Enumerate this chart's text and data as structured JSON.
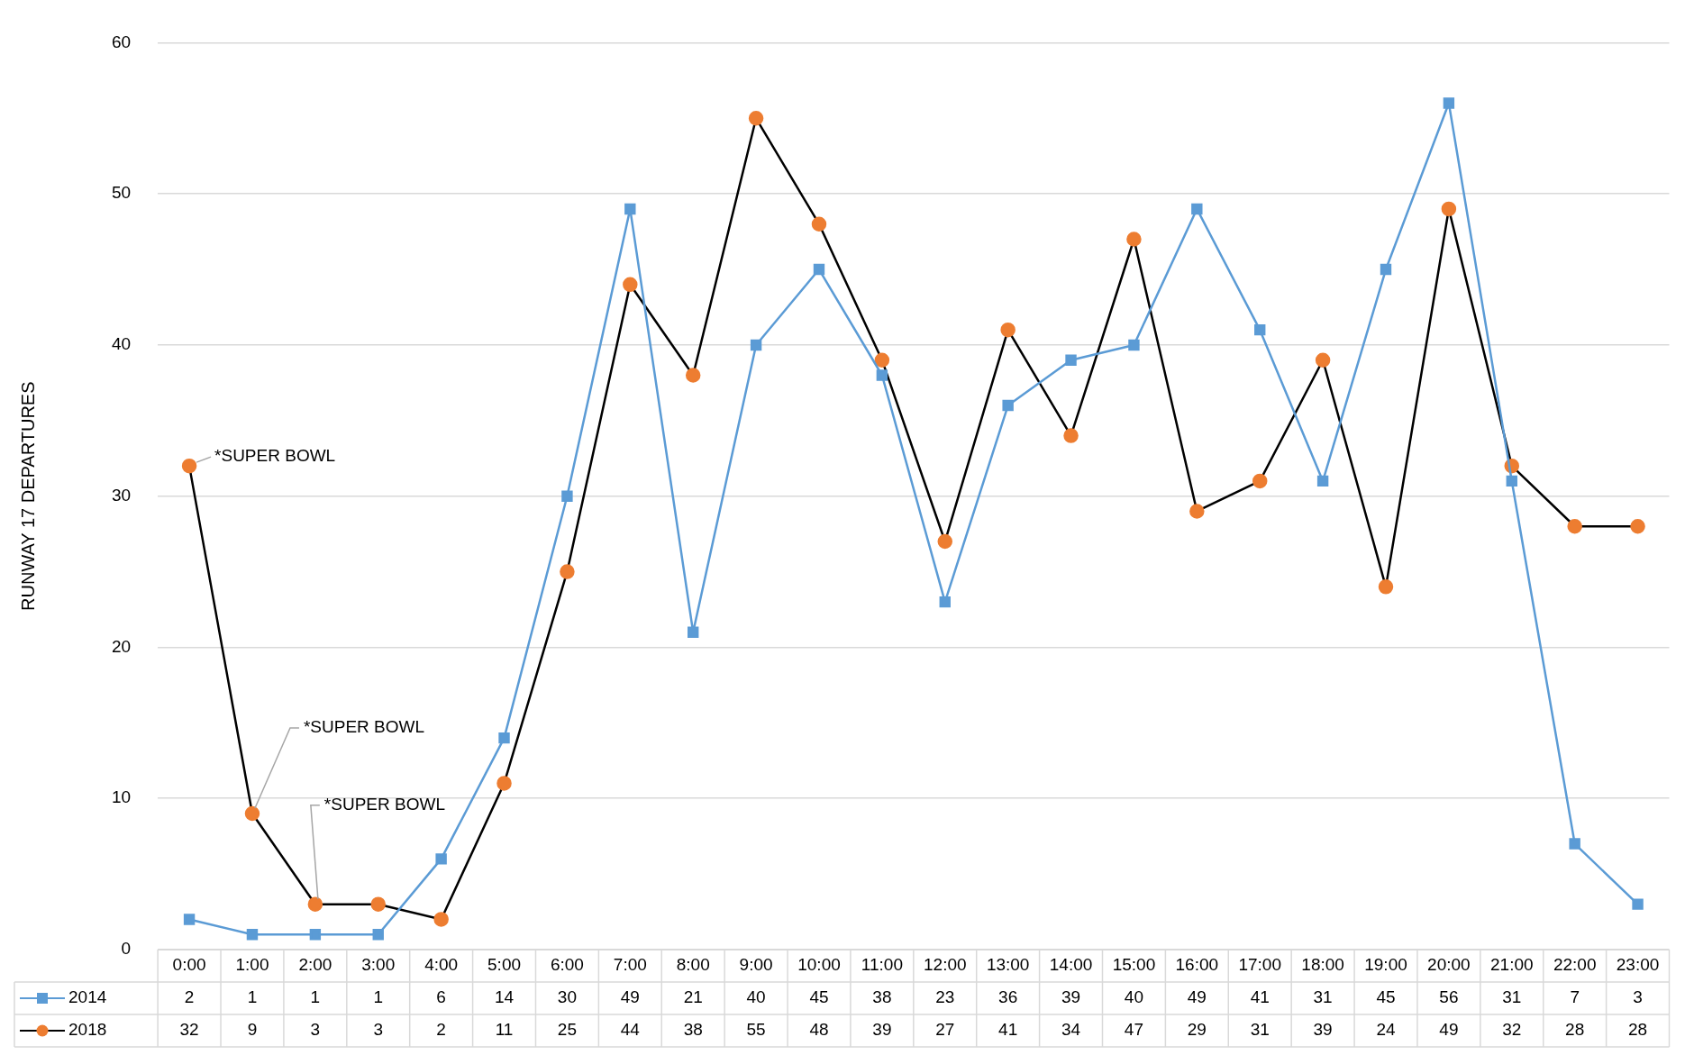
{
  "chart_data": {
    "type": "line",
    "ylabel": "RUNWAY 17 DEPARTURES",
    "categories": [
      "0:00",
      "1:00",
      "2:00",
      "3:00",
      "4:00",
      "5:00",
      "6:00",
      "7:00",
      "8:00",
      "9:00",
      "10:00",
      "11:00",
      "12:00",
      "13:00",
      "14:00",
      "15:00",
      "16:00",
      "17:00",
      "18:00",
      "19:00",
      "20:00",
      "21:00",
      "22:00",
      "23:00"
    ],
    "series": [
      {
        "name": "2014",
        "color": "#5b9bd5",
        "marker": "square",
        "values": [
          2,
          1,
          1,
          1,
          6,
          14,
          30,
          49,
          21,
          40,
          45,
          38,
          23,
          36,
          39,
          40,
          49,
          41,
          31,
          45,
          56,
          31,
          7,
          3
        ]
      },
      {
        "name": "2018",
        "color": "#ed7d31",
        "marker": "circle",
        "values": [
          32,
          9,
          3,
          3,
          2,
          11,
          25,
          44,
          38,
          55,
          48,
          39,
          27,
          41,
          34,
          47,
          29,
          31,
          39,
          24,
          49,
          32,
          28,
          28
        ]
      }
    ],
    "ylim": [
      0,
      60
    ],
    "yticks": [
      0,
      10,
      20,
      30,
      40,
      50,
      60
    ],
    "grid": "y",
    "legend": "bottom",
    "data_labels": true,
    "annotations": [
      {
        "text": "*SUPER BOWL",
        "x": "0:00",
        "y": 32
      },
      {
        "text": "*SUPER BOWL",
        "x": "1:00",
        "y": 9
      },
      {
        "text": "*SUPER BOWL",
        "x": "2:00",
        "y": 3
      }
    ]
  }
}
